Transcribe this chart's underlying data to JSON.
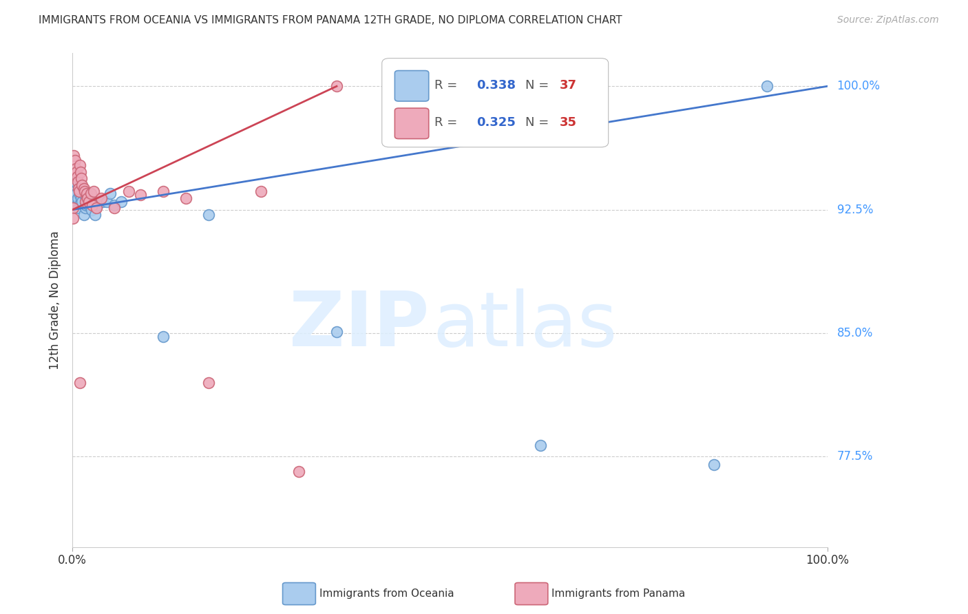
{
  "title": "IMMIGRANTS FROM OCEANIA VS IMMIGRANTS FROM PANAMA 12TH GRADE, NO DIPLOMA CORRELATION CHART",
  "source": "Source: ZipAtlas.com",
  "ylabel": "12th Grade, No Diploma",
  "xlim": [
    0.0,
    1.0
  ],
  "ylim": [
    0.72,
    1.02
  ],
  "yticks": [
    0.775,
    0.85,
    0.925,
    1.0
  ],
  "ytick_labels": [
    "77.5%",
    "85.0%",
    "92.5%",
    "100.0%"
  ],
  "background_color": "#ffffff",
  "grid_color": "#cccccc",
  "oceania_color": "#6699cc",
  "oceania_face": "#aaccee",
  "panama_color": "#cc6677",
  "panama_face": "#eeaabb",
  "R_oceania": 0.338,
  "N_oceania": 37,
  "R_panama": 0.325,
  "N_panama": 35,
  "legend_R_color": "#3366cc",
  "legend_N_color": "#cc3333",
  "oceania_trend_x": [
    0.0,
    1.0
  ],
  "oceania_trend_y": [
    0.925,
    1.0
  ],
  "panama_trend_x": [
    0.0,
    0.35
  ],
  "panama_trend_y": [
    0.925,
    1.0
  ],
  "oceania_x": [
    0.001,
    0.001,
    0.003,
    0.004,
    0.005,
    0.005,
    0.007,
    0.008,
    0.009,
    0.01,
    0.011,
    0.012,
    0.013,
    0.014,
    0.015,
    0.016,
    0.017,
    0.018,
    0.019,
    0.02,
    0.022,
    0.025,
    0.027,
    0.03,
    0.033,
    0.04,
    0.045,
    0.05,
    0.055,
    0.065,
    0.12,
    0.18,
    0.35,
    0.62,
    0.85,
    0.92,
    0.68
  ],
  "oceania_y": [
    0.938,
    0.93,
    0.936,
    0.942,
    0.935,
    0.928,
    0.932,
    0.926,
    0.938,
    0.934,
    0.929,
    0.932,
    0.93,
    0.936,
    0.922,
    0.934,
    0.926,
    0.928,
    0.932,
    0.93,
    0.928,
    0.925,
    0.93,
    0.922,
    0.928,
    0.93,
    0.93,
    0.935,
    0.928,
    0.93,
    0.848,
    0.922,
    0.851,
    0.782,
    0.77,
    1.0,
    1.0
  ],
  "panama_x": [
    0.001,
    0.001,
    0.002,
    0.003,
    0.004,
    0.005,
    0.006,
    0.007,
    0.008,
    0.009,
    0.01,
    0.011,
    0.012,
    0.013,
    0.015,
    0.016,
    0.017,
    0.019,
    0.02,
    0.022,
    0.024,
    0.026,
    0.028,
    0.032,
    0.038,
    0.055,
    0.075,
    0.09,
    0.12,
    0.15,
    0.18,
    0.25,
    0.3,
    0.01,
    0.35
  ],
  "panama_y": [
    0.926,
    0.92,
    0.958,
    0.955,
    0.95,
    0.948,
    0.945,
    0.942,
    0.938,
    0.936,
    0.952,
    0.948,
    0.944,
    0.94,
    0.938,
    0.936,
    0.93,
    0.935,
    0.932,
    0.93,
    0.935,
    0.928,
    0.936,
    0.926,
    0.932,
    0.926,
    0.936,
    0.934,
    0.936,
    0.932,
    0.82,
    0.936,
    0.766,
    0.82,
    1.0
  ]
}
